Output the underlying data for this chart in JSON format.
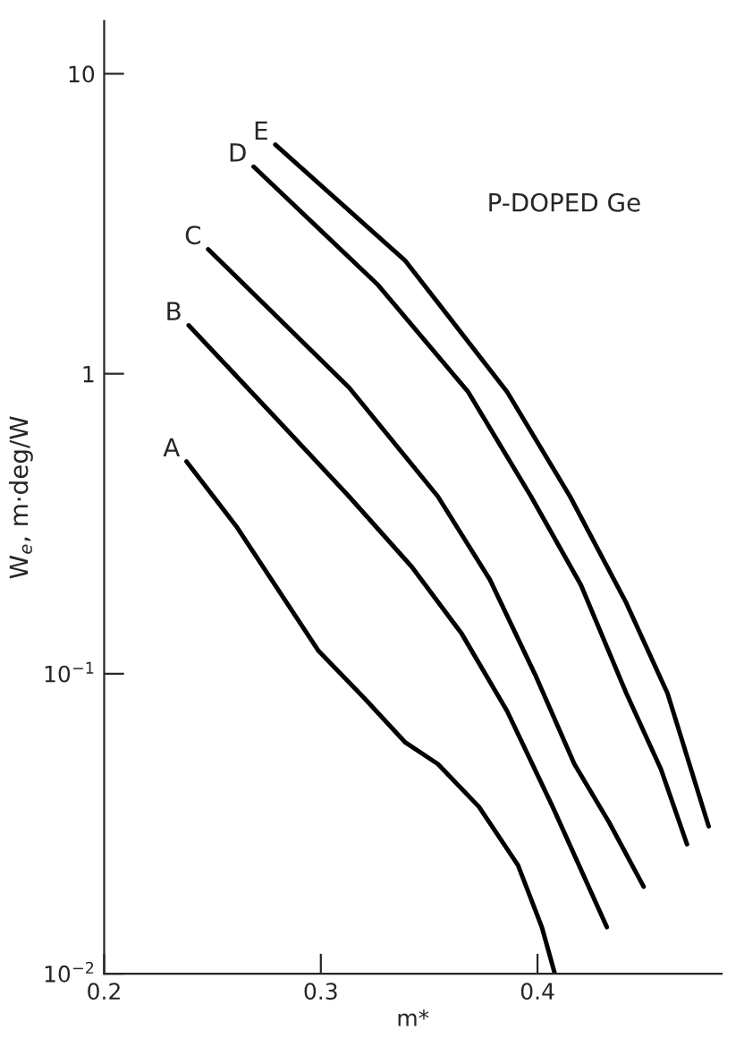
{
  "chart_data": {
    "type": "line",
    "xlabel": "m*",
    "ylabel": "W$_{e}$, m·deg/W",
    "annotations": [
      "P-DOPED Ge"
    ],
    "log": "y",
    "marker": "none",
    "line_style": "solid",
    "xlim": [
      0.2,
      0.485
    ],
    "xticks": [
      0.2,
      0.3,
      0.4
    ],
    "ylim": [
      0.01,
      15
    ],
    "yticks": [
      {
        "value": 0.01,
        "label": "10$^{−2}$"
      },
      {
        "value": 0.1,
        "label": "10$^{−1}$"
      },
      1,
      10
    ],
    "series": [
      {
        "name": "A",
        "color": "#000000",
        "x": [
          0.238,
          0.261,
          0.268,
          0.299,
          0.32,
          0.339,
          0.354,
          0.373,
          0.391,
          0.402,
          0.408
        ],
        "values": [
          0.51,
          0.31,
          0.26,
          0.119,
          0.083,
          0.059,
          0.05,
          0.036,
          0.023,
          0.0143,
          0.01
        ]
      },
      {
        "name": "B",
        "color": "#000000",
        "x": [
          0.239,
          0.281,
          0.313,
          0.342,
          0.365,
          0.386,
          0.407,
          0.432
        ],
        "values": [
          1.45,
          0.69,
          0.39,
          0.227,
          0.136,
          0.075,
          0.036,
          0.0143
        ]
      },
      {
        "name": "C",
        "color": "#000000",
        "x": [
          0.248,
          0.313,
          0.354,
          0.378,
          0.399,
          0.417,
          0.433,
          0.449
        ],
        "values": [
          2.6,
          0.9,
          0.39,
          0.206,
          0.099,
          0.05,
          0.032,
          0.0195
        ]
      },
      {
        "name": "D",
        "color": "#000000",
        "x": [
          0.269,
          0.326,
          0.368,
          0.397,
          0.42,
          0.441,
          0.457,
          0.469
        ],
        "values": [
          4.9,
          1.99,
          0.87,
          0.39,
          0.198,
          0.086,
          0.048,
          0.027
        ]
      },
      {
        "name": "E",
        "color": "#000000",
        "x": [
          0.279,
          0.339,
          0.386,
          0.415,
          0.441,
          0.46,
          0.479
        ],
        "values": [
          5.8,
          2.38,
          0.87,
          0.39,
          0.172,
          0.086,
          0.031
        ]
      }
    ]
  }
}
